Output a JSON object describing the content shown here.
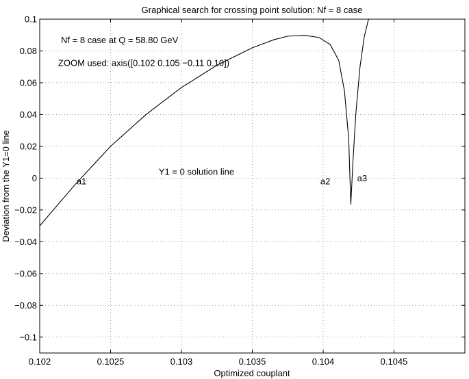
{
  "chart_data": {
    "type": "line",
    "title": "Graphical search for crossing point solution: Nf = 8 case",
    "xlabel": "Optimized couplant",
    "ylabel": "Deviation from the Y1=0 line",
    "xlim": [
      0.102,
      0.105
    ],
    "ylim": [
      -0.11,
      0.1
    ],
    "xticks": [
      0.102,
      0.1025,
      0.103,
      0.1035,
      0.104,
      0.1045
    ],
    "xtick_labels": [
      "0.102",
      "0.1025",
      "0.103",
      "0.1035",
      "0.104",
      "0.1045"
    ],
    "yticks": [
      0.1,
      0.08,
      0.06,
      0.04,
      0.02,
      0,
      -0.02,
      -0.04,
      -0.06,
      -0.08,
      -0.1
    ],
    "ytick_labels": [
      "0.1",
      "0.08",
      "0.06",
      "0.04",
      "0.02",
      "0",
      "−0.02",
      "−0.04",
      "−0.06",
      "−0.08",
      "−0.1"
    ],
    "grid": true,
    "series": [
      {
        "x": [
          0.102,
          0.10225,
          0.1025,
          0.10275,
          0.103,
          0.10325,
          0.1035,
          0.10365,
          0.10375,
          0.10387,
          0.10397,
          0.10405,
          0.10411,
          0.10415,
          0.10418,
          0.104195,
          0.10421,
          0.10423,
          0.10426,
          0.10429,
          0.10432
        ],
        "y": [
          -0.03,
          -0.004,
          0.02,
          0.04,
          0.057,
          0.071,
          0.082,
          0.087,
          0.0893,
          0.0898,
          0.0885,
          0.084,
          0.074,
          0.055,
          0.025,
          -0.0165,
          0.01,
          0.04,
          0.07,
          0.089,
          0.1
        ]
      }
    ],
    "annotations": [
      {
        "text": "Nf = 8 case at Q = 58.80 GeV",
        "x": 0.10215,
        "y": 0.085
      },
      {
        "text": "ZOOM used: axis([0.102 0.105 −0.11 0.10])",
        "x": 0.10213,
        "y": 0.0705
      },
      {
        "text": "Y1 = 0 solution line",
        "x": 0.10284,
        "y": 0.002
      },
      {
        "text": "a1",
        "x": 0.10226,
        "y": -0.004
      },
      {
        "text": "a2",
        "x": 0.10398,
        "y": -0.004
      },
      {
        "text": "a3",
        "x": 0.10424,
        "y": -0.002
      }
    ]
  }
}
